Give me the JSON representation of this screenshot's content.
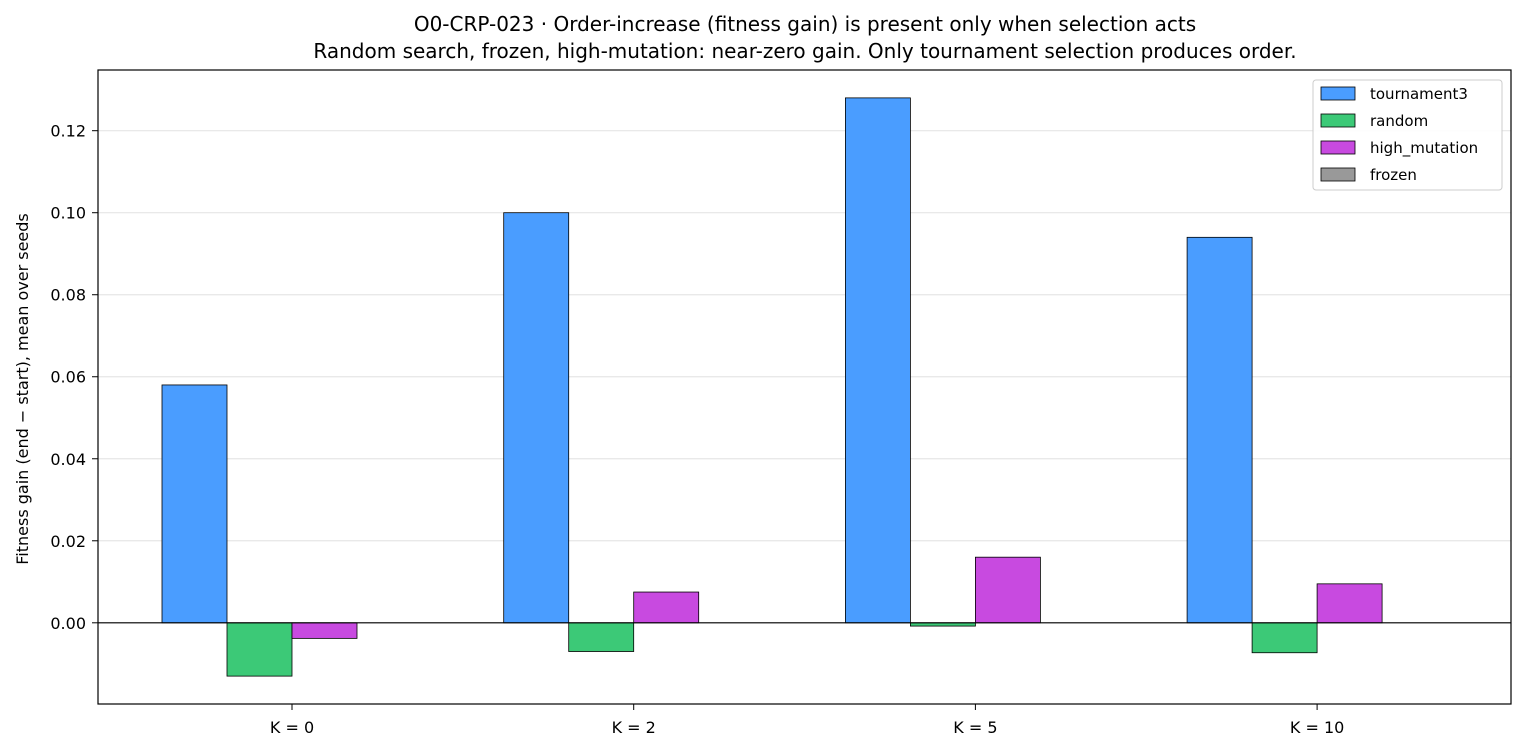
{
  "chart_data": {
    "type": "bar",
    "title": "O0-CRP-023 · Order-increase (fitness gain) is present only when selection acts",
    "subtitle": "Random search, frozen, high-mutation: near-zero gain. Only tournament selection produces order.",
    "xlabel": "",
    "ylabel": "Fitness gain (end − start), mean over seeds",
    "categories": [
      "K = 0",
      "K = 2",
      "K = 5",
      "K = 10"
    ],
    "series": [
      {
        "name": "tournament3",
        "color": "#4a9dff",
        "values": [
          0.058,
          0.1,
          0.128,
          0.094
        ]
      },
      {
        "name": "random",
        "color": "#3cc977",
        "values": [
          -0.013,
          -0.007,
          -0.0008,
          -0.0073
        ]
      },
      {
        "name": "high_mutation",
        "color": "#c84ae0",
        "values": [
          -0.0038,
          0.0075,
          0.016,
          0.0095
        ]
      },
      {
        "name": "frozen",
        "color": "#999999",
        "values": [
          0,
          0,
          0,
          0
        ]
      }
    ],
    "ylim": [
      -0.0198,
      0.1348
    ],
    "yticks": [
      0.0,
      0.02,
      0.04,
      0.06,
      0.08,
      0.1,
      0.12
    ],
    "ytick_labels": [
      "0.00",
      "0.02",
      "0.04",
      "0.06",
      "0.08",
      "0.10",
      "0.12"
    ],
    "grid": "horizontal",
    "legend_position": "top-right"
  }
}
